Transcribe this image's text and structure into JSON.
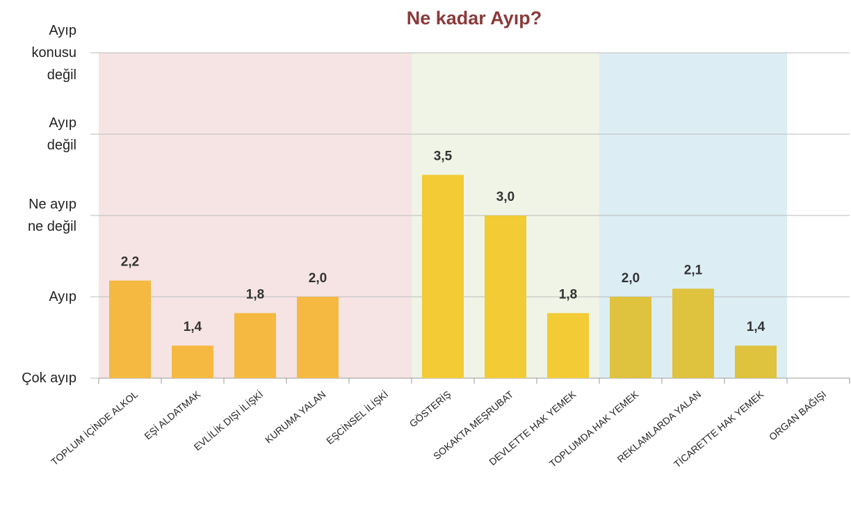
{
  "chart_data": {
    "type": "bar",
    "title": "Ne kadar Ayıp?",
    "categories": [
      "TOPLUM İÇİNDE ALKOL",
      "EŞİ ALDATMAK",
      "EVLİLİK DIŞI İLİŞKİ",
      "KURUMA YALAN",
      "EŞCİNSEL İLİŞKİ",
      "GÖSTERİŞ",
      "SOKAKTA MEŞRUBAT",
      "DEVLETTE HAK YEMEK",
      "TOPLUMDA HAK YEMEK",
      "REKLAMLARDA YALAN",
      "TİCARETTE HAK YEMEK",
      "ORGAN BAĞIŞI"
    ],
    "values": [
      2.2,
      1.4,
      1.8,
      2.0,
      null,
      3.5,
      3.0,
      1.8,
      2.0,
      2.1,
      1.4,
      null
    ],
    "value_labels": [
      "2,2",
      "1,4",
      "1,8",
      "2,0",
      null,
      "3,5",
      "3,0",
      "1,8",
      "2,0",
      "2,1",
      "1,4",
      null
    ],
    "colors": [
      "#f5b942",
      "#f5b942",
      "#f5b942",
      "#f5b942",
      "#f5b942",
      "#f2cb35",
      "#f2cb35",
      "#f2cb35",
      "#dfc23e",
      "#dfc23e",
      "#dfc23e",
      "#dfc23e"
    ],
    "band_colors": [
      "#f6e4e4",
      "#f6e4e4",
      "#f6e4e4",
      "#f6e4e4",
      "#f6e4e4",
      "#eff4e6",
      "#eff4e6",
      "#eff4e6",
      "#dceef4",
      "#dceef4",
      "#dceef4",
      null
    ],
    "ylim": [
      1,
      5
    ],
    "yticks": [
      {
        "value": 1,
        "label": "Çok ayıp"
      },
      {
        "value": 2,
        "label": "Ayıp"
      },
      {
        "value": 3,
        "label": "Ne ayıp\nne değil"
      },
      {
        "value": 4,
        "label": "Ayıp\ndeğil"
      },
      {
        "value": 5,
        "label": "Ayıp\nkonusu\ndeğil"
      }
    ],
    "grid": true
  }
}
